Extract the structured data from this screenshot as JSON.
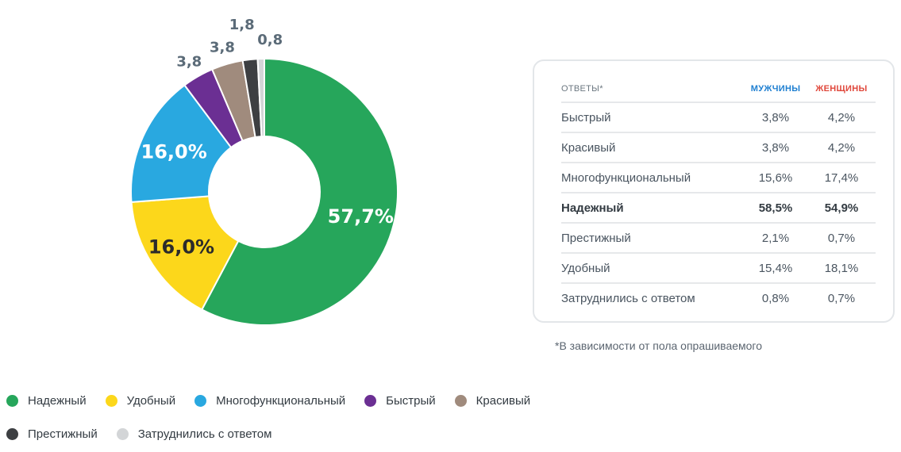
{
  "chart_data": {
    "type": "pie",
    "subtype": "donut",
    "slices": [
      {
        "label": "Надежный",
        "value": 57.7,
        "value_label": "57,7%",
        "color": "#26a65b"
      },
      {
        "label": "Удобный",
        "value": 16.0,
        "value_label": "16,0%",
        "color": "#fcd71b"
      },
      {
        "label": "Многофункциональный",
        "value": 16.0,
        "value_label": "16,0%",
        "color": "#29a8e0"
      },
      {
        "label": "Быстрый",
        "value": 3.8,
        "value_label": "3,8",
        "color": "#6b2f93"
      },
      {
        "label": "Красивый",
        "value": 3.8,
        "value_label": "3,8",
        "color": "#a08b7d"
      },
      {
        "label": "Престижный",
        "value": 1.8,
        "value_label": "1,8",
        "color": "#3d3f42"
      },
      {
        "label": "Затруднились с ответом",
        "value": 0.8,
        "value_label": "0,8",
        "color": "#d3d5d7"
      }
    ],
    "legend_position": "bottom-left"
  },
  "table": {
    "header": {
      "label": "ОТВЕТЫ*",
      "men": "МУЖЧИНЫ",
      "women": "ЖЕНЩИНЫ"
    },
    "rows": [
      {
        "label": "Быстрый",
        "men": "3,8%",
        "women": "4,2%",
        "bold": false
      },
      {
        "label": "Красивый",
        "men": "3,8%",
        "women": "4,2%",
        "bold": false
      },
      {
        "label": "Многофункциональный",
        "men": "15,6%",
        "women": "17,4%",
        "bold": false
      },
      {
        "label": "Надежный",
        "men": "58,5%",
        "women": "54,9%",
        "bold": true
      },
      {
        "label": "Престижный",
        "men": "2,1%",
        "women": "0,7%",
        "bold": false
      },
      {
        "label": "Удобный",
        "men": "15,4%",
        "women": "18,1%",
        "bold": false
      },
      {
        "label": "Затруднились с ответом",
        "men": "0,8%",
        "women": "0,7%",
        "bold": false
      }
    ]
  },
  "footnote": "*В зависимости от пола опрашиваемого",
  "legend": [
    {
      "label": "Надежный",
      "color": "#26a65b"
    },
    {
      "label": "Удобный",
      "color": "#fcd71b"
    },
    {
      "label": "Многофункциональный",
      "color": "#29a8e0"
    },
    {
      "label": "Быстрый",
      "color": "#6b2f93"
    },
    {
      "label": "Красивый",
      "color": "#a08b7d"
    },
    {
      "label": "Престижный",
      "color": "#3d3f42"
    },
    {
      "label": "Затруднились с ответом",
      "color": "#d3d5d7"
    }
  ]
}
